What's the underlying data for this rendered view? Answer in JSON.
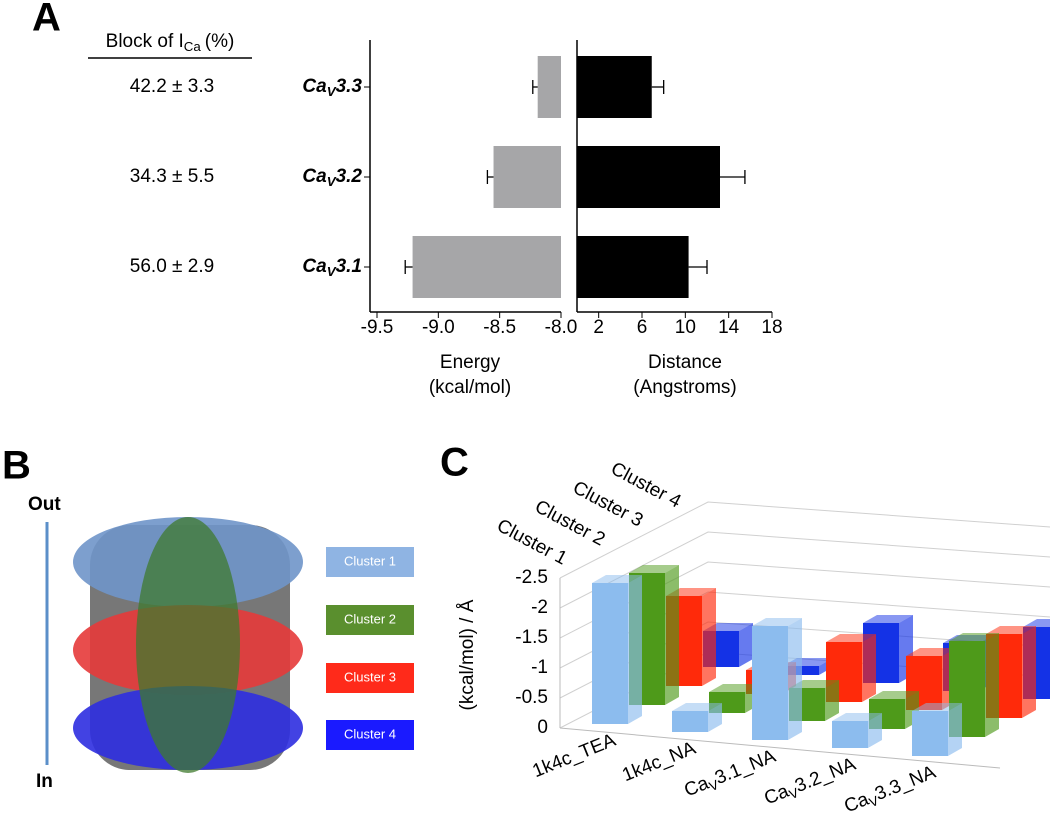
{
  "panel_labels": [
    "A",
    "B",
    "C"
  ],
  "block_table": {
    "header": [
      "Block of I",
      "Ca",
      "(%)"
    ],
    "values": [
      "42.2 ± 3.3",
      "34.3 ± 5.5",
      "56.0 ± 2.9"
    ]
  },
  "panel_b": {
    "out_label": "Out",
    "in_label": "In",
    "legend": [
      "Cluster 1",
      "Cluster 2",
      "Cluster 3",
      "Cluster 4"
    ]
  },
  "chart_data": [
    {
      "type": "hbar",
      "x_label": [
        "Energy",
        "(kcal/mol)"
      ],
      "categories": [
        [
          "Ca",
          "V",
          "3.3"
        ],
        [
          "Ca",
          "V",
          "3.2"
        ],
        [
          "Ca",
          "V",
          "3.1"
        ]
      ],
      "values": [
        -8.19,
        -8.55,
        -9.21
      ],
      "errors": [
        0.04,
        0.05,
        0.06
      ],
      "color": "#a6a6a8",
      "xlim": [
        -9.5,
        -8
      ],
      "xticks": [
        -9.5,
        {
          "value": -9,
          "label": "-9.0"
        },
        -8.5,
        {
          "value": -8,
          "label": "-8.0"
        }
      ]
    },
    {
      "type": "hbar",
      "x_label": [
        "Distance",
        "(Angstroms)"
      ],
      "values": [
        6.9,
        13.2,
        10.3
      ],
      "errors": [
        1.1,
        2.3,
        1.7
      ],
      "color": "#000000",
      "xlim": [
        0,
        18
      ],
      "xticks": [
        2,
        6,
        10,
        14,
        18
      ]
    },
    {
      "type": "bar3d",
      "y_label": "(kcal/mol) / Å",
      "categories": [
        [
          "1k4c_TEA"
        ],
        [
          "1k4c_NA"
        ],
        [
          "Ca",
          "V",
          "3.1_NA"
        ],
        [
          "Ca",
          "V",
          "3.2_NA"
        ],
        [
          "Ca",
          "V",
          "3.3_NA"
        ]
      ],
      "series": [
        {
          "name": "Cluster 1",
          "color": "#8cbcee",
          "values": [
            -2.35,
            -0.35,
            -1.9,
            -0.45,
            -0.75
          ]
        },
        {
          "name": "Cluster 2",
          "color": "#4e9a1a",
          "values": [
            -2.2,
            -0.35,
            -0.55,
            -0.5,
            -1.6
          ]
        },
        {
          "name": "Cluster 3",
          "color": "#ff2a0a",
          "values": [
            -1.5,
            -0.4,
            -1.0,
            -0.9,
            -1.4
          ]
        },
        {
          "name": "Cluster 4",
          "color": "#1432e6",
          "values": [
            -0.6,
            -0.15,
            -1.0,
            -0.8,
            -1.2
          ]
        }
      ],
      "ylim": [
        0,
        -2.5
      ],
      "yticks": [
        0,
        -0.5,
        -1,
        -1.5,
        -2,
        -2.5
      ]
    }
  ]
}
